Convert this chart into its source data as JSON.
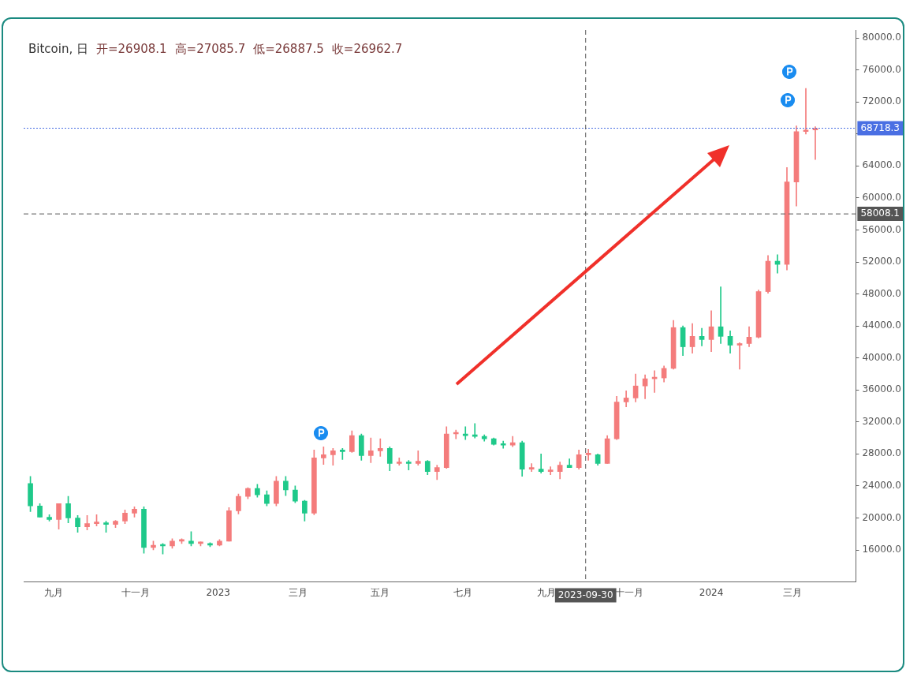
{
  "chart_data": {
    "type": "candlestick",
    "title": "Bitcoin, 日",
    "annotations": [
      "开=26908.1",
      "高=27085.7",
      "低=26887.5",
      "收=26962.7"
    ],
    "x": [
      "2022-08-15",
      "2022-08-22",
      "2022-08-29",
      "2022-09-05",
      "2022-09-12",
      "2022-09-19",
      "2022-09-26",
      "2022-10-03",
      "2022-10-10",
      "2022-10-17",
      "2022-10-24",
      "2022-10-31",
      "2022-11-07",
      "2022-11-14",
      "2022-11-21",
      "2022-11-28",
      "2022-12-05",
      "2022-12-12",
      "2022-12-19",
      "2022-12-26",
      "2023-01-02",
      "2023-01-09",
      "2023-01-16",
      "2023-01-23",
      "2023-01-30",
      "2023-02-06",
      "2023-02-13",
      "2023-02-20",
      "2023-02-27",
      "2023-03-06",
      "2023-03-13",
      "2023-03-20",
      "2023-03-27",
      "2023-04-03",
      "2023-04-10",
      "2023-04-17",
      "2023-04-24",
      "2023-05-01",
      "2023-05-08",
      "2023-05-15",
      "2023-05-22",
      "2023-05-29",
      "2023-06-05",
      "2023-06-12",
      "2023-06-19",
      "2023-06-26",
      "2023-07-03",
      "2023-07-10",
      "2023-07-17",
      "2023-07-24",
      "2023-07-31",
      "2023-08-07",
      "2023-08-14",
      "2023-08-21",
      "2023-08-28",
      "2023-09-04",
      "2023-09-11",
      "2023-09-18",
      "2023-09-25",
      "2023-10-02",
      "2023-10-09",
      "2023-10-16",
      "2023-10-23",
      "2023-10-30",
      "2023-11-06",
      "2023-11-13",
      "2023-11-20",
      "2023-11-27",
      "2023-12-04",
      "2023-12-11",
      "2023-12-18",
      "2023-12-25",
      "2024-01-01",
      "2024-01-08",
      "2024-01-15",
      "2024-01-22",
      "2024-01-29",
      "2024-02-05",
      "2024-02-12",
      "2024-02-19",
      "2024-02-26",
      "2024-03-04",
      "2024-03-11",
      "2024-03-18"
    ],
    "ohlc": [
      [
        24300,
        25200,
        20800,
        21500
      ],
      [
        21500,
        21800,
        20100,
        20100
      ],
      [
        20100,
        20400,
        19600,
        19800
      ],
      [
        19800,
        21800,
        18600,
        21800
      ],
      [
        21800,
        22700,
        19400,
        20000
      ],
      [
        20000,
        20300,
        18200,
        18900
      ],
      [
        18900,
        20300,
        18500,
        19300
      ],
      [
        19300,
        20400,
        19000,
        19400
      ],
      [
        19400,
        19600,
        18200,
        19200
      ],
      [
        19200,
        19700,
        18800,
        19600
      ],
      [
        19600,
        21000,
        19300,
        20600
      ],
      [
        20600,
        21400,
        20100,
        21100
      ],
      [
        21100,
        21400,
        15600,
        16300
      ],
      [
        16300,
        17100,
        16000,
        16600
      ],
      [
        16600,
        16800,
        15500,
        16500
      ],
      [
        16500,
        17400,
        16200,
        17100
      ],
      [
        17100,
        17400,
        16800,
        17100
      ],
      [
        17100,
        18300,
        16500,
        16800
      ],
      [
        16800,
        17000,
        16500,
        16800
      ],
      [
        16800,
        16900,
        16400,
        16600
      ],
      [
        16600,
        17300,
        16500,
        17100
      ],
      [
        17100,
        21300,
        17100,
        20900
      ],
      [
        20900,
        23000,
        20500,
        22700
      ],
      [
        22700,
        23800,
        22400,
        23700
      ],
      [
        23700,
        24200,
        22600,
        22900
      ],
      [
        22900,
        23400,
        21500,
        21800
      ],
      [
        21800,
        25200,
        21500,
        24600
      ],
      [
        24600,
        25200,
        22800,
        23500
      ],
      [
        23500,
        24000,
        21900,
        22100
      ],
      [
        22100,
        22200,
        19600,
        20600
      ],
      [
        20600,
        28500,
        20400,
        27500
      ],
      [
        27500,
        28900,
        26700,
        27900
      ],
      [
        27900,
        28700,
        26600,
        28400
      ],
      [
        28400,
        28700,
        27300,
        28300
      ],
      [
        28300,
        30900,
        28200,
        30300
      ],
      [
        30300,
        30500,
        27200,
        27800
      ],
      [
        27800,
        30000,
        26900,
        28400
      ],
      [
        28400,
        29900,
        27700,
        28700
      ],
      [
        28700,
        28900,
        25900,
        26800
      ],
      [
        26800,
        27500,
        26600,
        26900
      ],
      [
        26900,
        27200,
        26000,
        26800
      ],
      [
        26800,
        28400,
        26600,
        27100
      ],
      [
        27100,
        27200,
        25400,
        25800
      ],
      [
        25800,
        26600,
        24800,
        26300
      ],
      [
        26300,
        31400,
        26200,
        30500
      ],
      [
        30500,
        31000,
        29900,
        30500
      ],
      [
        30500,
        31400,
        29800,
        30300
      ],
      [
        30300,
        31800,
        30000,
        30200
      ],
      [
        30200,
        30400,
        29600,
        29900
      ],
      [
        29900,
        30000,
        29100,
        29200
      ],
      [
        29200,
        29600,
        28700,
        29100
      ],
      [
        29100,
        30200,
        28900,
        29400
      ],
      [
        29400,
        29600,
        25200,
        26100
      ],
      [
        26100,
        26800,
        25800,
        26100
      ],
      [
        26100,
        28000,
        25600,
        25800
      ],
      [
        25800,
        26400,
        25400,
        25800
      ],
      [
        25800,
        27000,
        24900,
        26600
      ],
      [
        26600,
        27400,
        26300,
        26300
      ],
      [
        26300,
        28500,
        26100,
        27900
      ],
      [
        27900,
        28600,
        27200,
        27900
      ],
      [
        27900,
        28000,
        26600,
        26800
      ],
      [
        26800,
        30300,
        26800,
        29900
      ],
      [
        29900,
        35200,
        29800,
        34500
      ],
      [
        34500,
        35900,
        33900,
        35000
      ],
      [
        35000,
        38000,
        34500,
        36500
      ],
      [
        36500,
        37900,
        34900,
        37400
      ],
      [
        37400,
        38400,
        35700,
        37500
      ],
      [
        37500,
        39000,
        37000,
        38700
      ],
      [
        38700,
        44700,
        38600,
        43800
      ],
      [
        43800,
        44000,
        40300,
        41400
      ],
      [
        41400,
        44300,
        40600,
        42700
      ],
      [
        42700,
        43700,
        41500,
        42300
      ],
      [
        42300,
        45900,
        40800,
        43900
      ],
      [
        43900,
        48900,
        41800,
        42700
      ],
      [
        42700,
        43400,
        40600,
        41600
      ],
      [
        41600,
        41900,
        38600,
        41800
      ],
      [
        41800,
        43900,
        41400,
        42600
      ],
      [
        42600,
        48500,
        42500,
        48300
      ],
      [
        48300,
        52800,
        48100,
        52100
      ],
      [
        52100,
        52900,
        50600,
        51700
      ],
      [
        51700,
        63800,
        51000,
        62000
      ],
      [
        62000,
        69000,
        59000,
        68300
      ],
      [
        68300,
        73700,
        68000,
        68500
      ],
      [
        68500,
        68900,
        64800,
        68700
      ]
    ],
    "colors": [
      "#1fc98a",
      "#1fc98a",
      "#1fc98a",
      "#f47c7c",
      "#1fc98a",
      "#1fc98a",
      "#f47c7c",
      "#f47c7c",
      "#1fc98a",
      "#f47c7c",
      "#f47c7c",
      "#f47c7c",
      "#1fc98a",
      "#f47c7c",
      "#1fc98a",
      "#f47c7c",
      "#f47c7c",
      "#1fc98a",
      "#f47c7c",
      "#1fc98a",
      "#f47c7c",
      "#f47c7c",
      "#f47c7c",
      "#f47c7c",
      "#1fc98a",
      "#1fc98a",
      "#f47c7c",
      "#1fc98a",
      "#1fc98a",
      "#1fc98a",
      "#f47c7c",
      "#f47c7c",
      "#f47c7c",
      "#1fc98a",
      "#f47c7c",
      "#1fc98a",
      "#f47c7c",
      "#f47c7c",
      "#1fc98a",
      "#f47c7c",
      "#1fc98a",
      "#f47c7c",
      "#1fc98a",
      "#f47c7c",
      "#f47c7c",
      "#f47c7c",
      "#1fc98a",
      "#1fc98a",
      "#1fc98a",
      "#1fc98a",
      "#1fc98a",
      "#f47c7c",
      "#1fc98a",
      "#f47c7c",
      "#1fc98a",
      "#f47c7c",
      "#f47c7c",
      "#1fc98a",
      "#f47c7c",
      "#f47c7c",
      "#1fc98a",
      "#f47c7c",
      "#f47c7c",
      "#f47c7c",
      "#f47c7c",
      "#f47c7c",
      "#f47c7c",
      "#f47c7c",
      "#f47c7c",
      "#1fc98a",
      "#f47c7c",
      "#1fc98a",
      "#f47c7c",
      "#1fc98a",
      "#1fc98a",
      "#f47c7c",
      "#f47c7c",
      "#f47c7c",
      "#f47c7c",
      "#1fc98a",
      "#f47c7c",
      "#f47c7c",
      "#f47c7c",
      "#f47c7c"
    ],
    "xlim": [
      "2022-08-10",
      "2024-04-17"
    ],
    "xticks": [
      {
        "value": "2022-09-01",
        "label": "九月"
      },
      {
        "value": "2022-11-01",
        "label": "十一月"
      },
      {
        "value": "2023-01-01",
        "label": "2023"
      },
      {
        "value": "2023-03-01",
        "label": "三月"
      },
      {
        "value": "2023-05-01",
        "label": "五月"
      },
      {
        "value": "2023-07-01",
        "label": "七月"
      },
      {
        "value": "2023-09-01",
        "label": "九月"
      },
      {
        "value": "2023-11-01",
        "label": "十一月"
      },
      {
        "value": "2024-01-01",
        "label": "2024"
      },
      {
        "value": "2024-03-01",
        "label": "三月"
      }
    ],
    "ylim": [
      12000,
      81000
    ],
    "yticks": [
      {
        "value": 16000,
        "label": "16000.0"
      },
      {
        "value": 20000,
        "label": "20000.0"
      },
      {
        "value": 24000,
        "label": "24000.0"
      },
      {
        "value": 28000,
        "label": "28000.0"
      },
      {
        "value": 32000,
        "label": "32000.0"
      },
      {
        "value": 36000,
        "label": "36000.0"
      },
      {
        "value": 40000,
        "label": "40000.0"
      },
      {
        "value": 44000,
        "label": "44000.0"
      },
      {
        "value": 48000,
        "label": "48000.0"
      },
      {
        "value": 52000,
        "label": "52000.0"
      },
      {
        "value": 56000,
        "label": "56000.0"
      },
      {
        "value": 60000,
        "label": "60000.0"
      },
      {
        "value": 64000,
        "label": "64000.0"
      },
      {
        "value": 68000,
        "label": null
      },
      {
        "value": 72000,
        "label": "72000.0"
      },
      {
        "value": 76000,
        "label": "76000.0"
      },
      {
        "value": 80000,
        "label": "80000.0"
      }
    ],
    "ref_lines": [
      {
        "axis": "y",
        "value": 68718.3,
        "label": "68718.3",
        "color": "#4a6fe3",
        "line_style": "dotted"
      },
      {
        "axis": "y",
        "value": 58008.1,
        "label": "58008.1",
        "color": "#555555",
        "line_style": "dashed"
      },
      {
        "axis": "x",
        "value": "2023-09-30",
        "label": "2023-09-30",
        "color": "#555555",
        "line_style": "dashed"
      }
    ],
    "legend": false
  }
}
